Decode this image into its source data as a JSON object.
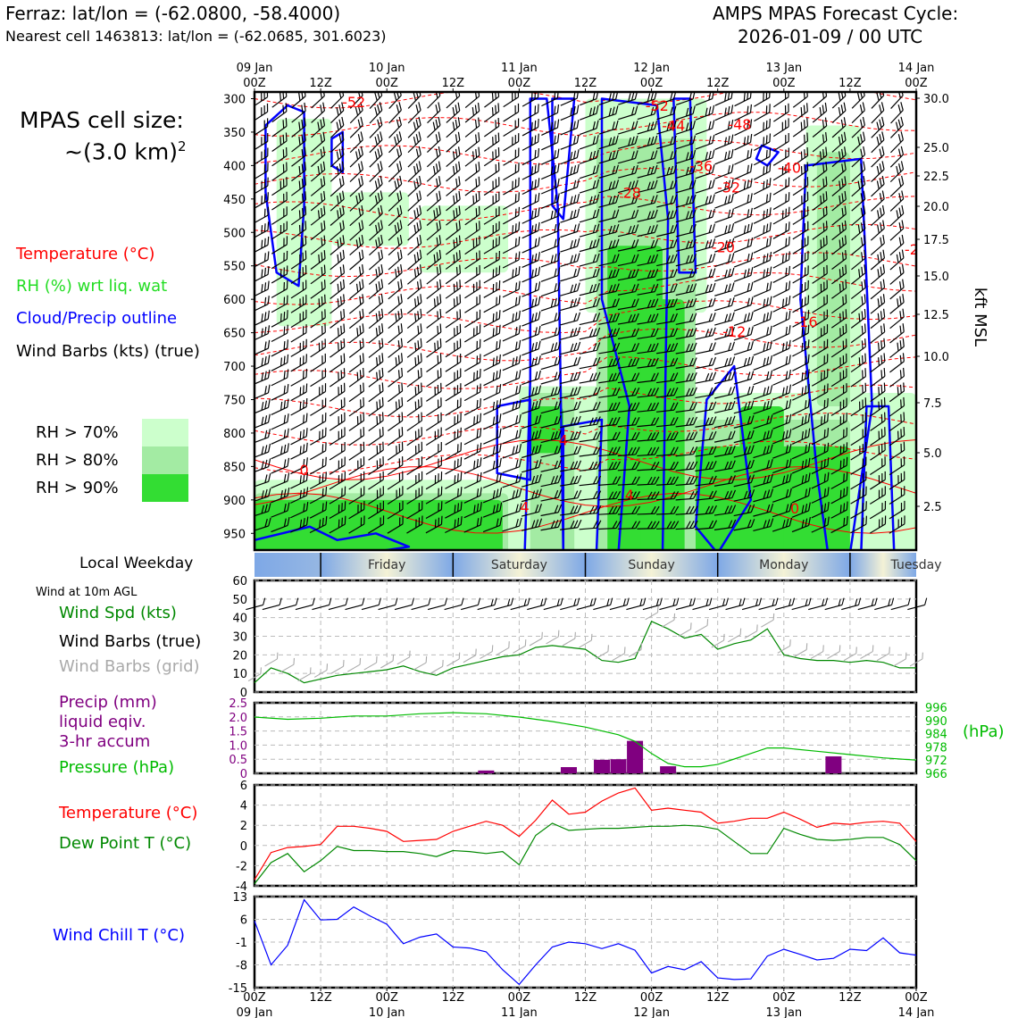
{
  "header": {
    "station": "Ferraz: lat/lon = (-62.0800, -58.4000)",
    "nearest": "Nearest cell 1463813: lat/lon = (-62.0685, 301.6023)",
    "cycle_title": "AMPS MPAS Forecast Cycle:",
    "cycle_date": "2026-01-09 / 00 UTC"
  },
  "legend": {
    "cell_size_label": "MPAS cell size:",
    "cell_size_value": "~(3.0 km)",
    "cell_size_sup": "2",
    "temperature": "Temperature (°C)",
    "rh": "RH (%) wrt liq. wat",
    "cloud": "Cloud/Precip outline",
    "wind": "Wind Barbs (kts) (true)",
    "rh70": "RH > 70%",
    "rh80": "RH > 80%",
    "rh90": "RH > 90%"
  },
  "colors": {
    "temperature": "#ff0000",
    "rh_label": "#22dd22",
    "cloud": "#0000ff",
    "rh70": "#ccffcc",
    "rh80": "#a3eba3",
    "rh90": "#33dd33",
    "wind_speed": "#008800",
    "precip": "#800080",
    "pressure": "#00bb00",
    "dewpoint": "#008800",
    "windchill": "#0000ff",
    "barb_grid": "#aaaaaa"
  },
  "weekday": {
    "title": "Local Weekday",
    "days": [
      "Friday",
      "Saturday",
      "Sunday",
      "Monday",
      "Tuesday"
    ]
  },
  "panels": {
    "wind_caption": "Wind at 10m AGL",
    "wind_spd": "Wind Spd (kts)",
    "wind_barbs_true": "Wind Barbs (true)",
    "wind_barbs_grid": "Wind Barbs (grid)",
    "precip_1": "Precip (mm)",
    "precip_2": "liquid eqiv.",
    "precip_3": "3-hr accum",
    "pressure": "Pressure (hPa)",
    "hpa": "(hPa)",
    "temp": "Temperature (°C)",
    "dew": "Dew Point T (°C)",
    "windchill": "Wind Chill T (°C)"
  },
  "chart_data": [
    {
      "type": "heatmap",
      "name": "time-height cross section",
      "x_hours": [
        0,
        12,
        24,
        36,
        48,
        60,
        72,
        84,
        96,
        108,
        120
      ],
      "x_tick_top": [
        "00Z",
        "12Z",
        "00Z",
        "12Z",
        "00Z",
        "12Z",
        "00Z",
        "12Z",
        "00Z",
        "12Z",
        "00Z"
      ],
      "x_date_labels": [
        {
          "hour": 0,
          "label": "09 Jan"
        },
        {
          "hour": 24,
          "label": "10 Jan"
        },
        {
          "hour": 48,
          "label": "11 Jan"
        },
        {
          "hour": 72,
          "label": "12 Jan"
        },
        {
          "hour": 96,
          "label": "13 Jan"
        },
        {
          "hour": 120,
          "label": "14 Jan"
        }
      ],
      "y_pressure_ticks": [
        300,
        350,
        400,
        450,
        500,
        550,
        600,
        650,
        700,
        750,
        800,
        850,
        900,
        950
      ],
      "y_pressure_range": [
        975,
        290
      ],
      "y_right_kft": [
        30.0,
        25.0,
        22.5,
        20.0,
        17.5,
        15.0,
        12.5,
        10.0,
        7.5,
        5.0,
        2.5
      ],
      "y_right_label": "kft MSL",
      "temperature_labels": [
        {
          "hour": 18,
          "p": 305,
          "v": "-52"
        },
        {
          "hour": 73,
          "p": 310,
          "v": "-52"
        },
        {
          "hour": 76,
          "p": 340,
          "v": "-44"
        },
        {
          "hour": 88,
          "p": 338,
          "v": "-48"
        },
        {
          "hour": 81,
          "p": 400,
          "v": "-36"
        },
        {
          "hour": 97,
          "p": 403,
          "v": "-40"
        },
        {
          "hour": 86,
          "p": 432,
          "v": "-32"
        },
        {
          "hour": 68,
          "p": 440,
          "v": "-28"
        },
        {
          "hour": 85,
          "p": 522,
          "v": "-20"
        },
        {
          "hour": 120,
          "p": 525,
          "v": "-24"
        },
        {
          "hour": 100,
          "p": 633,
          "v": "-16"
        },
        {
          "hour": 87,
          "p": 648,
          "v": "-12"
        },
        {
          "hour": 9,
          "p": 855,
          "v": "0"
        },
        {
          "hour": 49,
          "p": 910,
          "v": "4"
        },
        {
          "hour": 68,
          "p": 892,
          "v": "4"
        },
        {
          "hour": 98,
          "p": 912,
          "v": "0"
        },
        {
          "hour": 56,
          "p": 810,
          "v": "4"
        }
      ]
    },
    {
      "type": "line",
      "name": "wind speed 10m",
      "ylim": [
        0,
        60
      ],
      "yticks": [
        0,
        10,
        20,
        30,
        40,
        50,
        60
      ],
      "x_hours": [
        0,
        3,
        6,
        9,
        12,
        15,
        18,
        21,
        24,
        27,
        30,
        33,
        36,
        39,
        42,
        45,
        48,
        51,
        54,
        57,
        60,
        63,
        66,
        69,
        72,
        75,
        78,
        81,
        84,
        87,
        90,
        93,
        96,
        99,
        102,
        105,
        108,
        111,
        114,
        117,
        120
      ],
      "values": [
        5,
        13,
        10,
        5,
        7,
        9,
        10,
        11,
        12,
        14,
        11,
        9,
        13,
        15,
        17,
        19,
        20,
        24,
        25,
        24,
        23,
        17,
        16,
        18,
        38,
        34,
        29,
        31,
        23,
        26,
        28,
        34,
        20,
        18,
        17,
        17,
        16,
        17,
        16,
        13,
        13
      ]
    },
    {
      "type": "bar",
      "name": "precipitation 3-hr accum (mm)",
      "ylim": [
        0,
        2.5
      ],
      "yticks": [
        0,
        0.5,
        1.0,
        1.5,
        2.0,
        2.5
      ],
      "x_hours": [
        42,
        57,
        63,
        66,
        69,
        75,
        105
      ],
      "values": [
        0.1,
        0.22,
        0.48,
        0.5,
        1.15,
        0.25,
        0.6
      ]
    },
    {
      "type": "line",
      "name": "pressure (hPa)",
      "ylim": [
        966,
        998
      ],
      "yticks": [
        966,
        972,
        978,
        984,
        990,
        996
      ],
      "x_hours": [
        0,
        6,
        12,
        18,
        24,
        30,
        36,
        42,
        48,
        54,
        60,
        66,
        69,
        72,
        75,
        78,
        81,
        84,
        87,
        90,
        93,
        96,
        102,
        108,
        114,
        120
      ],
      "values": [
        991.5,
        990.5,
        991,
        992,
        992,
        993,
        993.5,
        993,
        991.5,
        989.5,
        987,
        983.5,
        980.5,
        975,
        970.5,
        969,
        969,
        970,
        972.5,
        975,
        977.5,
        977.5,
        976,
        974.5,
        973,
        972
      ]
    },
    {
      "type": "line",
      "name": "temperature and dew point",
      "ylim": [
        -4,
        6
      ],
      "yticks": [
        -4,
        -2,
        0,
        2,
        4,
        6
      ],
      "x_hours": [
        0,
        3,
        6,
        9,
        12,
        15,
        18,
        21,
        24,
        27,
        30,
        33,
        36,
        39,
        42,
        45,
        48,
        51,
        54,
        57,
        60,
        63,
        66,
        69,
        72,
        75,
        78,
        81,
        84,
        87,
        90,
        93,
        96,
        99,
        102,
        105,
        108,
        111,
        114,
        117,
        120
      ],
      "series": [
        {
          "name": "Temperature (°C)",
          "values": [
            -3.4,
            -0.7,
            -0.2,
            -0.1,
            0.1,
            1.9,
            1.9,
            1.7,
            1.4,
            0.4,
            0.5,
            0.6,
            1.4,
            1.9,
            2.4,
            2.0,
            0.9,
            2.5,
            4.5,
            3.1,
            3.3,
            4.4,
            5.2,
            5.7,
            3.5,
            3.7,
            3.5,
            3.3,
            2.2,
            2.4,
            2.7,
            2.7,
            3.3,
            2.6,
            1.8,
            2.2,
            2.1,
            2.3,
            2.4,
            2.2,
            0.4
          ]
        },
        {
          "name": "Dew Point T (°C)",
          "values": [
            -3.8,
            -1.7,
            -0.8,
            -2.6,
            -1.5,
            -0.1,
            -0.5,
            -0.5,
            -0.6,
            -0.6,
            -0.8,
            -1.1,
            -0.5,
            -0.6,
            -0.8,
            -0.6,
            -1.9,
            1.0,
            2.2,
            1.5,
            1.6,
            1.7,
            1.7,
            1.8,
            1.9,
            1.9,
            2.0,
            1.9,
            1.6,
            0.4,
            -0.8,
            -0.8,
            1.7,
            1.1,
            0.6,
            0.5,
            0.6,
            0.8,
            0.8,
            0.1,
            -1.5
          ]
        }
      ]
    },
    {
      "type": "line",
      "name": "wind chill (°C)",
      "ylim": [
        -15,
        13
      ],
      "yticks": [
        -15,
        -8,
        -1,
        6,
        13
      ],
      "x_hours": [
        0,
        3,
        6,
        9,
        12,
        15,
        18,
        21,
        24,
        27,
        30,
        33,
        36,
        39,
        42,
        45,
        48,
        51,
        54,
        57,
        60,
        63,
        66,
        69,
        72,
        75,
        78,
        81,
        84,
        87,
        90,
        93,
        96,
        99,
        102,
        105,
        108,
        111,
        114,
        117,
        120
      ],
      "values": [
        5.5,
        -8.0,
        -2.0,
        12.0,
        5.8,
        6.0,
        9.8,
        7.0,
        4.5,
        -1.5,
        0.5,
        1.5,
        -2.5,
        -2.8,
        -4.0,
        -9.5,
        -14.0,
        -8.0,
        -2.5,
        -1.0,
        -1.5,
        -3.0,
        -1.5,
        -3.5,
        -10.5,
        -8.5,
        -9.5,
        -7.0,
        -12.0,
        -12.5,
        -12.3,
        -5.3,
        -3.2,
        -4.8,
        -6.5,
        -6.0,
        -3.2,
        -3.6,
        0.3,
        -4.3,
        -5.0
      ]
    }
  ]
}
